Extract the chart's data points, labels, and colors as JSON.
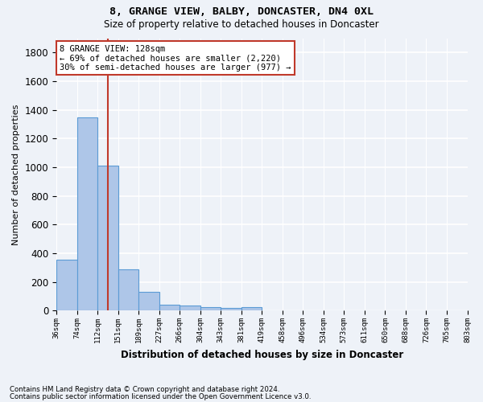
{
  "title1": "8, GRANGE VIEW, BALBY, DONCASTER, DN4 0XL",
  "title2": "Size of property relative to detached houses in Doncaster",
  "xlabel": "Distribution of detached houses by size in Doncaster",
  "ylabel": "Number of detached properties",
  "footnote1": "Contains HM Land Registry data © Crown copyright and database right 2024.",
  "footnote2": "Contains public sector information licensed under the Open Government Licence v3.0.",
  "bar_values": [
    355,
    1350,
    1010,
    290,
    130,
    42,
    35,
    25,
    18,
    25,
    0,
    0,
    0,
    0,
    0,
    0,
    0,
    0,
    0,
    0
  ],
  "bin_labels": [
    "36sqm",
    "74sqm",
    "112sqm",
    "151sqm",
    "189sqm",
    "227sqm",
    "266sqm",
    "304sqm",
    "343sqm",
    "381sqm",
    "419sqm",
    "458sqm",
    "496sqm",
    "534sqm",
    "573sqm",
    "611sqm",
    "650sqm",
    "688sqm",
    "726sqm",
    "765sqm",
    "803sqm"
  ],
  "bar_color": "#aec6e8",
  "bar_edge_color": "#5b9bd5",
  "property_line_x": 2.5,
  "annotation_line1": "8 GRANGE VIEW: 128sqm",
  "annotation_line2": "← 69% of detached houses are smaller (2,220)",
  "annotation_line3": "30% of semi-detached houses are larger (977) →",
  "red_line_color": "#c0392b",
  "ylim": [
    0,
    1900
  ],
  "yticks": [
    0,
    200,
    400,
    600,
    800,
    1000,
    1200,
    1400,
    1600,
    1800
  ],
  "background_color": "#eef2f8",
  "grid_color": "white",
  "figsize": [
    6.0,
    5.0
  ],
  "dpi": 100
}
